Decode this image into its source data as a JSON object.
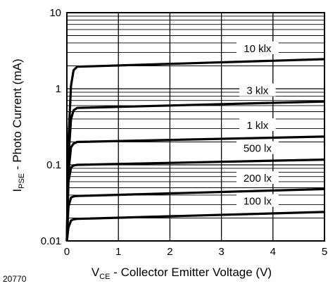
{
  "figure_id": "20770",
  "chart_data": {
    "type": "line",
    "title": "",
    "xlabel_main": "V",
    "xlabel_sub": "CE",
    "xlabel_rest": " - Collector Emitter Voltage (V)",
    "ylabel_main": "I",
    "ylabel_sub": "PSE",
    "ylabel_rest": " - Photo Current (mA)",
    "xlim": [
      0,
      5
    ],
    "ylim": [
      0.01,
      10
    ],
    "y_scale": "log",
    "grid": true,
    "x_ticks": [
      "0",
      "1",
      "2",
      "3",
      "4",
      "5"
    ],
    "y_ticks": [
      "0.01",
      "0.1",
      "1",
      "10"
    ],
    "series": [
      {
        "name": "10 klx",
        "x": [
          0,
          0.03,
          0.08,
          0.13,
          0.2,
          5
        ],
        "y": [
          0.01,
          0.2,
          1.1,
          1.75,
          1.95,
          2.45
        ]
      },
      {
        "name": "3 klx",
        "x": [
          0,
          0.03,
          0.08,
          0.13,
          0.2,
          5
        ],
        "y": [
          0.01,
          0.12,
          0.4,
          0.52,
          0.56,
          0.68
        ]
      },
      {
        "name": "1 klx",
        "x": [
          0,
          0.03,
          0.08,
          0.13,
          0.2,
          5
        ],
        "y": [
          0.01,
          0.08,
          0.17,
          0.19,
          0.2,
          0.235
        ]
      },
      {
        "name": "500 lx",
        "x": [
          0,
          0.03,
          0.08,
          0.13,
          0.2,
          5
        ],
        "y": [
          0.01,
          0.06,
          0.092,
          0.098,
          0.1,
          0.117
        ]
      },
      {
        "name": "200 lx",
        "x": [
          0,
          0.03,
          0.08,
          0.13,
          0.2,
          5
        ],
        "y": [
          0.01,
          0.028,
          0.037,
          0.0385,
          0.039,
          0.048
        ]
      },
      {
        "name": "100 lx",
        "x": [
          0,
          0.03,
          0.08,
          0.13,
          0.2,
          5
        ],
        "y": [
          0.01,
          0.015,
          0.0185,
          0.0192,
          0.0195,
          0.024
        ]
      }
    ]
  }
}
